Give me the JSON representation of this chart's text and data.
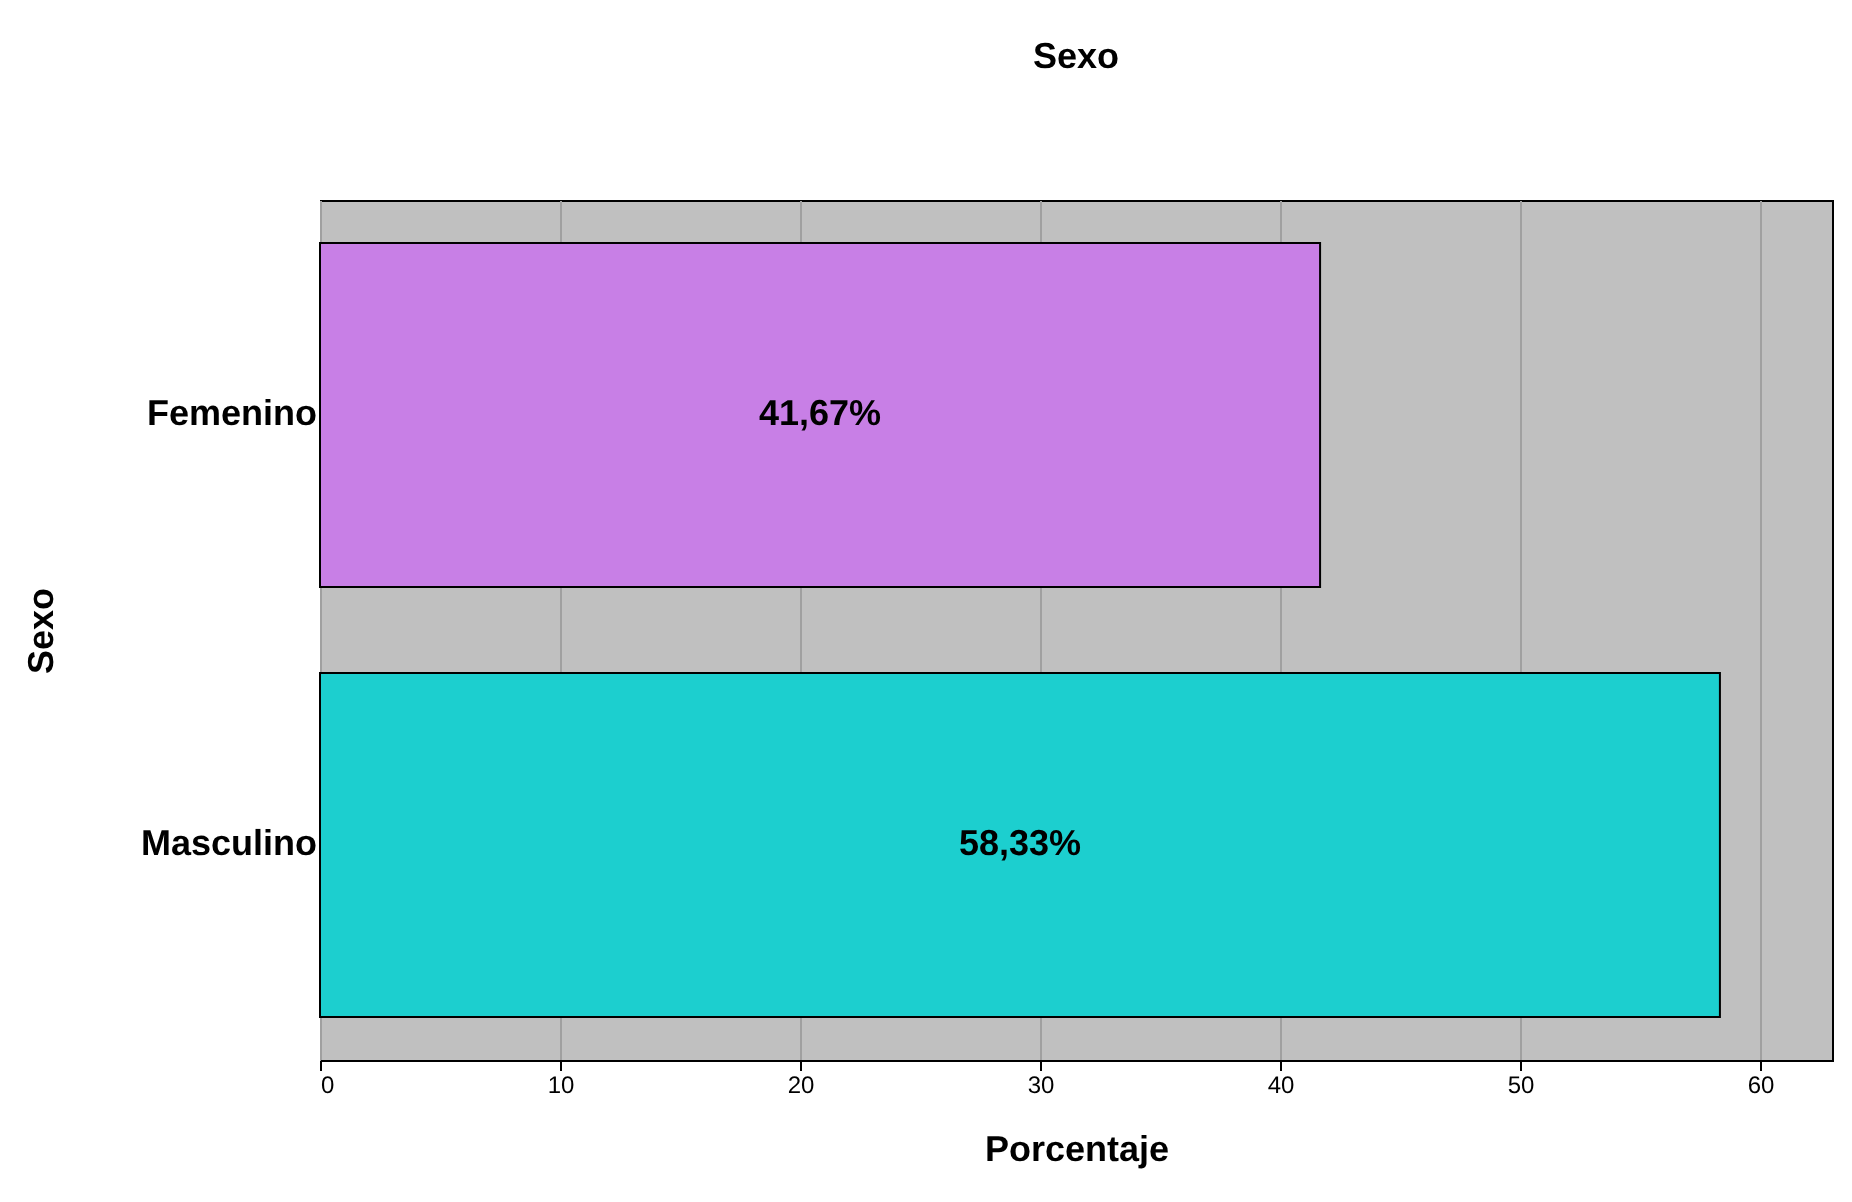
{
  "chart_data": {
    "type": "bar",
    "orientation": "horizontal",
    "title": "Sexo",
    "xlabel": "Porcentaje",
    "ylabel": "Sexo",
    "categories": [
      "Femenino",
      "Masculino"
    ],
    "values": [
      41.67,
      58.33
    ],
    "colors": [
      "#c87fe6",
      "#1ccfcf"
    ],
    "value_labels": [
      "41,67%",
      "58,33%"
    ],
    "xlim": [
      0,
      63
    ],
    "xticks": [
      0,
      10,
      20,
      30,
      40,
      50,
      60
    ],
    "grid": "x"
  }
}
